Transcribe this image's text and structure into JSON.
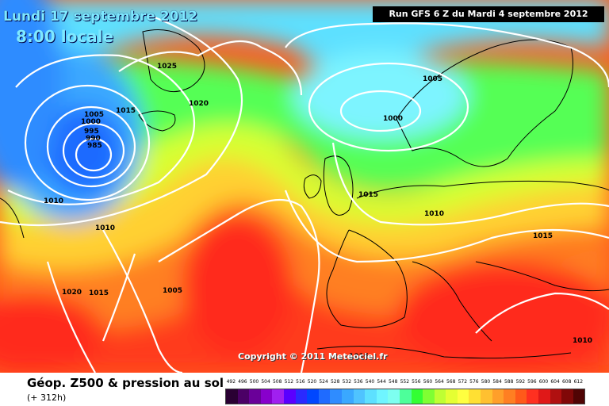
{
  "header": {
    "date_line": "Lundi 17 septembre 2012",
    "time_line": "8:00 locale",
    "run_info": "Run GFS 6 Z du Mardi 4 septembre 2012"
  },
  "copyright": "Copyright © 2011 Meteociel.fr",
  "footer": {
    "title": "Géop. Z500 & pression au sol",
    "subtitle": "(+ 312h)"
  },
  "isobars": {
    "labels": [
      "1025",
      "1020",
      "1015",
      "1005",
      "1000",
      "995",
      "990",
      "985",
      "1010",
      "1010",
      "1020",
      "1015",
      "1005",
      "1015",
      "1010",
      "1015",
      "1005",
      "1000",
      "1015",
      "1010"
    ]
  },
  "legend": {
    "values": [
      "492",
      "496",
      "500",
      "504",
      "508",
      "512",
      "516",
      "520",
      "524",
      "528",
      "532",
      "536",
      "540",
      "544",
      "548",
      "552",
      "556",
      "560",
      "564",
      "568",
      "572",
      "576",
      "580",
      "584",
      "588",
      "592",
      "596",
      "600",
      "604",
      "608",
      "612"
    ],
    "colors": [
      "#2a0033",
      "#4b0066",
      "#6a0099",
      "#8800cc",
      "#a020f0",
      "#5a00ff",
      "#2a2aff",
      "#0047ff",
      "#1f6bff",
      "#2f8cff",
      "#3aa8ff",
      "#4fc3ff",
      "#5de0ff",
      "#6ff5ff",
      "#7dfff0",
      "#4dff9a",
      "#33ff33",
      "#7fff33",
      "#bfff33",
      "#e5ff33",
      "#ffff40",
      "#ffe033",
      "#ffc030",
      "#ff9f2a",
      "#ff7f22",
      "#ff5a1a",
      "#ff3020",
      "#e01818",
      "#b01010",
      "#800808",
      "#500404"
    ]
  }
}
